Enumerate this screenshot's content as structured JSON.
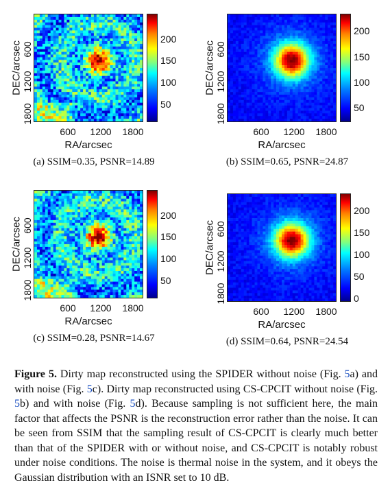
{
  "panels": [
    {
      "caption": "(a)  SSIM=0.35, PSNR=14.89",
      "ylabel": "DEC/arcsec",
      "xlabel": "RA/arcsec",
      "xticks": [
        "600",
        "1200",
        "1800"
      ],
      "yticks": [
        "600",
        "1200",
        "1800"
      ],
      "cticks": [
        "200",
        "150",
        "100",
        "50"
      ],
      "style": "noisy-a"
    },
    {
      "caption": "(b)  SSIM=0.65, PSNR=24.87",
      "ylabel": "DEC/arcsec",
      "xlabel": "RA/arcsec",
      "xticks": [
        "600",
        "1200",
        "1800"
      ],
      "yticks": [
        "600",
        "1200",
        "1800"
      ],
      "cticks": [
        "200",
        "150",
        "100",
        "50"
      ],
      "style": "clean"
    },
    {
      "caption": "(c)  SSIM=0.28, PSNR=14.67",
      "ylabel": "DEC/arcsec",
      "xlabel": "RA/arcsec",
      "xticks": [
        "600",
        "1200",
        "1800"
      ],
      "yticks": [
        "600",
        "1200",
        "1800"
      ],
      "cticks": [
        "200",
        "150",
        "100",
        "50"
      ],
      "style": "noisy-c"
    },
    {
      "caption": "(d)  SSIM=0.64, PSNR=24.54",
      "ylabel": "DEC/arcsec",
      "xlabel": "RA/arcsec",
      "xticks": [
        "600",
        "1200",
        "1800"
      ],
      "yticks": [
        "600",
        "1200",
        "1800"
      ],
      "cticks": [
        "200",
        "150",
        "100",
        "50",
        "0"
      ],
      "style": "clean"
    }
  ],
  "figure_caption": {
    "label": "Figure 5.",
    "part1": " Dirty map reconstructed using the SPIDER without noise (Fig. ",
    "ref_a": "5",
    "part2": "a) and with noise (Fig. ",
    "ref_c": "5",
    "part3": "c). Dirty map reconstructed using CS-CPCIT without noise (Fig. ",
    "ref_b": "5",
    "part4": "b) and with noise (Fig. ",
    "ref_d": "5",
    "part5": "d). Because sampling is not sufficient here, the main factor that affects the PSNR is the reconstruction error rather than the noise. It can be seen from SSIM that the sampling result of CS-CPCIT is clearly much better than that of the SPIDER with or without noise, and CS-CPCIT is notably robust under noise conditions. The noise is thermal noise in the system, and it obeys the Gaussian distribution with an ISNR set to 10 dB."
  }
}
